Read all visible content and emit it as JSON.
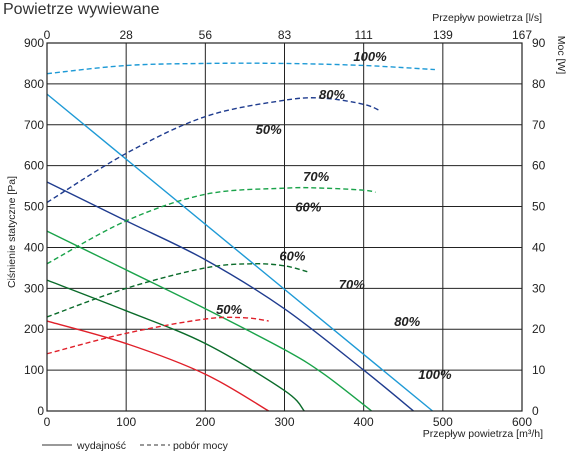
{
  "chart_data": {
    "type": "line",
    "title": "Powietrze wywiewane",
    "xlabel": "Przepływ powietrza [m³/h]",
    "x2label": "Przepływ powietrza [l/s]",
    "ylabel": "Ciśnienie statyczne [Pa]",
    "y2label": "Moc [W]",
    "xlim": [
      0,
      600
    ],
    "ylim": [
      0,
      900
    ],
    "y2lim": [
      0,
      90
    ],
    "x_ticks": [
      0,
      100,
      200,
      300,
      400,
      500,
      600
    ],
    "x2_ticks": [
      0,
      28,
      56,
      83,
      111,
      139,
      167
    ],
    "y_ticks": [
      0,
      100,
      200,
      300,
      400,
      500,
      600,
      700,
      800,
      900
    ],
    "y2_ticks": [
      0,
      10,
      20,
      30,
      40,
      50,
      60,
      70,
      80,
      90
    ],
    "grid": true,
    "series": [
      {
        "name": "100%",
        "kind": "pressure",
        "color": "#1e9ad6",
        "x": [
          0,
          487
        ],
        "y": [
          775,
          0
        ]
      },
      {
        "name": "80%",
        "kind": "pressure",
        "color": "#1f3c8f",
        "x": [
          0,
          100,
          200,
          300,
          400,
          463
        ],
        "y": [
          560,
          465,
          370,
          250,
          100,
          0
        ]
      },
      {
        "name": "70%",
        "kind": "pressure",
        "color": "#1aa34a",
        "x": [
          0,
          100,
          200,
          300,
          350,
          410
        ],
        "y": [
          440,
          345,
          250,
          150,
          90,
          0
        ]
      },
      {
        "name": "60%",
        "kind": "pressure",
        "color": "#0a6b2a",
        "x": [
          0,
          100,
          200,
          300,
          325
        ],
        "y": [
          320,
          245,
          165,
          50,
          0
        ]
      },
      {
        "name": "50%",
        "kind": "pressure",
        "color": "#e0202a",
        "x": [
          0,
          100,
          200,
          280
        ],
        "y": [
          220,
          165,
          90,
          0
        ]
      },
      {
        "name": "100%",
        "kind": "power",
        "color": "#1e9ad6",
        "x": [
          0,
          100,
          200,
          300,
          400,
          490
        ],
        "y": [
          82.5,
          84.5,
          85,
          85,
          84.5,
          83.5
        ]
      },
      {
        "name": "80%",
        "kind": "power",
        "color": "#1f3c8f",
        "x": [
          0,
          100,
          200,
          300,
          350,
          400,
          420
        ],
        "y": [
          51,
          63,
          72,
          76,
          76.5,
          75,
          73.5
        ]
      },
      {
        "name": "70%",
        "kind": "power",
        "color": "#1aa34a",
        "x": [
          0,
          100,
          200,
          300,
          350,
          400,
          415
        ],
        "y": [
          36,
          46.5,
          53,
          54.5,
          54.5,
          54,
          53.5
        ]
      },
      {
        "name": "60%",
        "kind": "power",
        "color": "#0a6b2a",
        "x": [
          0,
          100,
          200,
          260,
          300,
          330
        ],
        "y": [
          23,
          30,
          35,
          36,
          35.5,
          34
        ]
      },
      {
        "name": "50%",
        "kind": "power",
        "color": "#e0202a",
        "x": [
          0,
          100,
          200,
          250,
          280
        ],
        "y": [
          14,
          19,
          22.5,
          22.8,
          22
        ]
      }
    ],
    "curve_labels": [
      {
        "text": "100%",
        "x": 490,
        "y": 90
      },
      {
        "text": "80%",
        "x": 455,
        "y": 220
      },
      {
        "text": "70%",
        "x": 385,
        "y": 310
      },
      {
        "text": "60%",
        "x": 330,
        "y": 500
      },
      {
        "text": "50%",
        "x": 280,
        "y": 690
      },
      {
        "text": "100%",
        "x": 408,
        "y": 868
      },
      {
        "text": "80%",
        "x": 360,
        "y": 775
      },
      {
        "text": "70%",
        "x": 340,
        "y": 575
      },
      {
        "text": "60%",
        "x": 310,
        "y": 380
      },
      {
        "text": "50%",
        "x": 230,
        "y": 250
      }
    ],
    "legend": [
      {
        "label": "wydajność",
        "style": "solid"
      },
      {
        "label": "pobór mocy",
        "style": "dashed"
      }
    ]
  }
}
